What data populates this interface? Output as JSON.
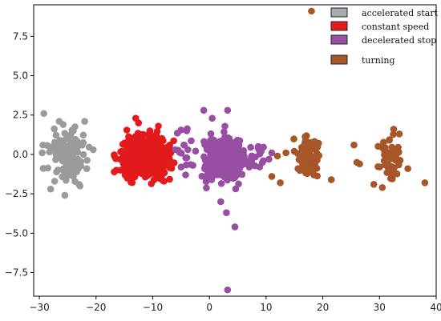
{
  "chart_data": {
    "type": "scatter",
    "title": "",
    "xlabel": "",
    "ylabel": "",
    "xlim": [
      -31,
      40
    ],
    "ylim": [
      -9,
      9.5
    ],
    "xticks": [
      -30,
      -20,
      -10,
      0,
      10,
      20,
      30,
      40
    ],
    "yticks": [
      7.5,
      5.0,
      2.5,
      0.0,
      -2.5,
      -5.0,
      -7.5
    ],
    "xtick_labels": [
      "−30",
      "−20",
      "−10",
      "0",
      "10",
      "20",
      "30",
      "40"
    ],
    "ytick_labels": [
      "7.5",
      "5.0",
      "2.5",
      "0.0",
      "−2.5",
      "−5.0",
      "−7.5"
    ],
    "grid": false,
    "legend_position": "top-right",
    "series": [
      {
        "name": "accelerated start",
        "color": "#9b9b9b",
        "swatch": "#a5aeae",
        "clusters": [
          {
            "center": [
              -25,
              -0.1
            ],
            "spread": [
              2.2,
              1.0
            ],
            "count": 120
          }
        ],
        "points": [
          [
            -29.2,
            2.6
          ],
          [
            -26.5,
            2.1
          ],
          [
            -25.8,
            1.9
          ],
          [
            -22.0,
            2.1
          ],
          [
            -20.5,
            0.3
          ],
          [
            -29.5,
            0.1
          ],
          [
            -25.5,
            -2.6
          ],
          [
            -28.0,
            -2.2
          ],
          [
            -23.0,
            -1.9
          ],
          [
            -27.3,
            -1.7
          ],
          [
            -24.0,
            1.5
          ],
          [
            -26.0,
            0.5
          ]
        ]
      },
      {
        "name": "constant speed",
        "color": "#e31a1c",
        "swatch": "#e41a1c",
        "clusters": [
          {
            "center": [
              -11.5,
              -0.2
            ],
            "spread": [
              2.8,
              0.9
            ],
            "count": 380
          }
        ],
        "points": [
          [
            -13.0,
            2.3
          ],
          [
            -9.0,
            1.8
          ],
          [
            -12.5,
            2.0
          ],
          [
            -7.0,
            0.6
          ],
          [
            -14.5,
            -1.5
          ],
          [
            -8.0,
            -1.7
          ],
          [
            -10.5,
            1.5
          ],
          [
            -15.5,
            0.2
          ]
        ]
      },
      {
        "name": "decelerated stop",
        "color": "#984ea3",
        "swatch": "#984ea3",
        "clusters": [
          {
            "center": [
              2.5,
              -0.3
            ],
            "spread": [
              2.3,
              0.95
            ],
            "count": 300
          },
          {
            "center": [
              8.0,
              -0.1
            ],
            "spread": [
              1.6,
              0.45
            ],
            "count": 25
          },
          {
            "center": [
              -4.0,
              0.2
            ],
            "spread": [
              1.0,
              0.9
            ],
            "count": 14
          }
        ],
        "points": [
          [
            -4.0,
            1.5
          ],
          [
            -4.5,
            0.6
          ],
          [
            -5.0,
            -0.8
          ],
          [
            -4.2,
            -1.3
          ],
          [
            -3.8,
            0.3
          ],
          [
            -1.0,
            2.8
          ],
          [
            3.2,
            2.8
          ],
          [
            0.5,
            2.3
          ],
          [
            3.0,
            -3.7
          ],
          [
            4.5,
            -4.6
          ],
          [
            3.2,
            -8.6
          ],
          [
            10.5,
            -0.3
          ],
          [
            11.0,
            0.1
          ],
          [
            9.5,
            -0.4
          ],
          [
            -6.0,
            0.3
          ],
          [
            2.0,
            -3.0
          ]
        ]
      },
      {
        "name": "turning",
        "color": "#a65628",
        "swatch": "#a65628",
        "clusters": [
          {
            "center": [
              17.5,
              -0.1
            ],
            "spread": [
              1.4,
              0.85
            ],
            "count": 80
          },
          {
            "center": [
              31.5,
              -0.4
            ],
            "spread": [
              1.3,
              0.9
            ],
            "count": 55
          }
        ],
        "points": [
          [
            18.0,
            9.1
          ],
          [
            12.0,
            -0.1
          ],
          [
            13.5,
            0.1
          ],
          [
            11.0,
            -1.4
          ],
          [
            12.5,
            -1.8
          ],
          [
            21.5,
            -1.6
          ],
          [
            25.5,
            0.6
          ],
          [
            26.0,
            -0.5
          ],
          [
            26.5,
            -0.6
          ],
          [
            29.0,
            -1.9
          ],
          [
            30.5,
            -2.1
          ],
          [
            32.5,
            1.6
          ],
          [
            33.5,
            1.3
          ],
          [
            35.0,
            -0.9
          ],
          [
            38.0,
            -1.8
          ]
        ]
      }
    ]
  }
}
